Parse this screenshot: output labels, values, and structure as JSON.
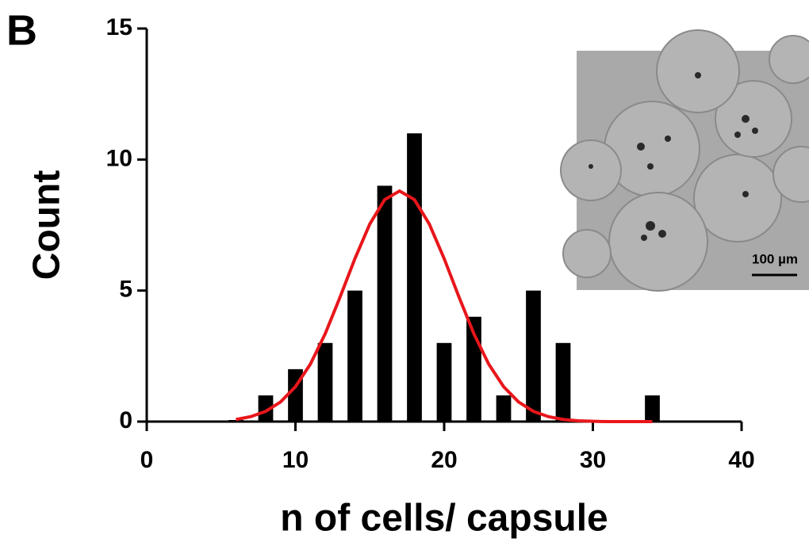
{
  "panel_label": "B",
  "chart_data": {
    "type": "bar",
    "x_label": "n of cells/ capsule",
    "y_label": "Count",
    "x": [
      6,
      8,
      10,
      12,
      14,
      16,
      18,
      20,
      22,
      24,
      26,
      28,
      30,
      32,
      34
    ],
    "values": [
      0,
      1,
      2,
      3,
      5,
      9,
      11,
      3,
      4,
      1,
      5,
      3,
      0,
      0,
      1
    ],
    "color": "#000000",
    "fit": {
      "color": "#e8161b",
      "x": [
        6,
        7,
        8,
        9,
        10,
        11,
        12,
        13,
        14,
        15,
        16,
        17,
        18,
        19,
        20,
        21,
        22,
        23,
        24,
        25,
        26,
        27,
        28,
        29,
        30,
        31,
        32,
        33,
        34
      ],
      "values": [
        0.08,
        0.19,
        0.39,
        0.75,
        1.33,
        2.19,
        3.35,
        4.75,
        6.22,
        7.54,
        8.47,
        8.8,
        8.47,
        7.54,
        6.22,
        4.75,
        3.35,
        2.19,
        1.33,
        0.75,
        0.39,
        0.19,
        0.08,
        0.03,
        0.01,
        0,
        0,
        0,
        0
      ]
    },
    "xlim": [
      0,
      40
    ],
    "xticks": [
      0,
      10,
      20,
      30,
      40
    ],
    "ylim": [
      0,
      15
    ],
    "yticks": [
      0,
      5,
      10,
      15
    ],
    "inset": {
      "scale_bar_label": "100 µm"
    }
  }
}
